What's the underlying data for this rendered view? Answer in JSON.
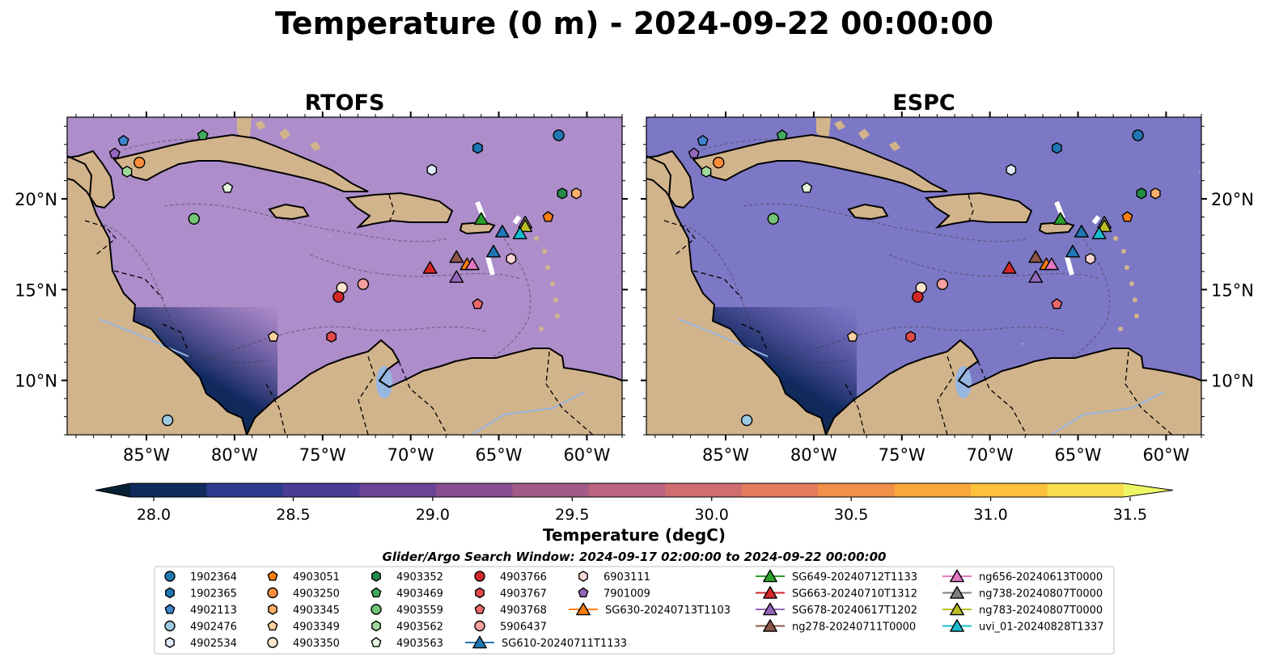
{
  "figure_title": "Temperature (0 m) - 2024-09-22 00:00:00",
  "colors": {
    "land": "#d2b48c",
    "lake": "#97b6e0",
    "scale": [
      "#062232",
      "#102a5e",
      "#2d3b8e",
      "#4b3b95",
      "#6a4496",
      "#874e8f",
      "#a25a88",
      "#ba6480",
      "#d06d70",
      "#e37c5c",
      "#f0904a",
      "#f9a63d",
      "#fdc13b",
      "#f7dc4d",
      "#eef665"
    ]
  },
  "chart_data": [
    {
      "type": "heatmap",
      "title": "RTOFS",
      "variable": "Temperature",
      "xlim": [
        -89.5,
        -58.0
      ],
      "ylim": [
        7.0,
        24.5
      ],
      "xticks": [
        "85°W",
        "80°W",
        "75°W",
        "70°W",
        "65°W",
        "60°W"
      ],
      "yticks": [
        "20°N",
        "15°N",
        "10°N"
      ],
      "relative_warmth": "warmer"
    },
    {
      "type": "heatmap",
      "title": "ESPC",
      "variable": "Temperature",
      "xlim": [
        -89.5,
        -58.0
      ],
      "ylim": [
        7.0,
        24.5
      ],
      "xticks": [
        "85°W",
        "80°W",
        "75°W",
        "70°W",
        "65°W",
        "60°W"
      ],
      "yticks": [
        "20°N",
        "15°N",
        "10°N"
      ],
      "relative_warmth": "cooler"
    }
  ],
  "colorbar": {
    "label": "Temperature (degC)",
    "range": [
      28.0,
      31.5
    ],
    "ticks": [
      "28.0",
      "28.5",
      "29.0",
      "29.5",
      "30.0",
      "30.5",
      "31.0",
      "31.5"
    ],
    "extend": "both"
  },
  "legend": {
    "title": "Glider/Argo Search Window: 2024-09-17 02:00:00 to 2024-09-22 00:00:00",
    "columns": [
      [
        {
          "label": "1902364",
          "marker": "circle",
          "color": "#1f77b4"
        },
        {
          "label": "1902365",
          "marker": "hexagon",
          "color": "#1f77b4"
        },
        {
          "label": "4902113",
          "marker": "pentagon",
          "color": "#3f86cf"
        },
        {
          "label": "4902476",
          "marker": "circle",
          "color": "#9ecae1"
        },
        {
          "label": "4902534",
          "marker": "hexagon",
          "color": "#deebf7"
        }
      ],
      [
        {
          "label": "4903051",
          "marker": "pentagon",
          "color": "#ff7f0e"
        },
        {
          "label": "4903250",
          "marker": "circle",
          "color": "#fd8d3c"
        },
        {
          "label": "4903345",
          "marker": "hexagon",
          "color": "#fdae6b"
        },
        {
          "label": "4903349",
          "marker": "pentagon",
          "color": "#fdd0a2"
        },
        {
          "label": "4903350",
          "marker": "circle",
          "color": "#fee6ce"
        }
      ],
      [
        {
          "label": "4903352",
          "marker": "hexagon",
          "color": "#238b45"
        },
        {
          "label": "4903469",
          "marker": "pentagon",
          "color": "#41ab5d"
        },
        {
          "label": "4903559",
          "marker": "circle",
          "color": "#74c476"
        },
        {
          "label": "4903562",
          "marker": "hexagon",
          "color": "#a1d99b"
        },
        {
          "label": "4903563",
          "marker": "pentagon",
          "color": "#e5f5e0"
        }
      ],
      [
        {
          "label": "4903766",
          "marker": "circle",
          "color": "#d62728"
        },
        {
          "label": "4903767",
          "marker": "hexagon",
          "color": "#e34a4a"
        },
        {
          "label": "4903768",
          "marker": "pentagon",
          "color": "#ee6a6a"
        },
        {
          "label": "5906437",
          "marker": "circle",
          "color": "#f7a0a0"
        },
        {
          "label": "SG610-20240711T1133",
          "marker": "triangle",
          "color": "#1f77b4",
          "line": true
        }
      ],
      [
        {
          "label": "6903111",
          "marker": "hexagon",
          "color": "#fcd5d5"
        },
        {
          "label": "7901009",
          "marker": "pentagon",
          "color": "#9467bd"
        },
        {
          "label": "SG630-20240713T1103",
          "marker": "triangle",
          "color": "#ff7f0e",
          "line": true
        }
      ],
      [
        {
          "label": "SG649-20240712T1133",
          "marker": "triangle",
          "color": "#2ca02c",
          "line": true
        },
        {
          "label": "SG663-20240710T1312",
          "marker": "triangle",
          "color": "#d62728",
          "line": true
        },
        {
          "label": "SG678-20240617T1202",
          "marker": "triangle",
          "color": "#9467bd",
          "line": true
        },
        {
          "label": "ng278-20240711T0000",
          "marker": "triangle",
          "color": "#8c564b",
          "line": true
        }
      ],
      [
        {
          "label": "ng656-20240613T0000",
          "marker": "triangle",
          "color": "#e377c2",
          "line": true
        },
        {
          "label": "ng738-20240807T0000",
          "marker": "triangle",
          "color": "#7f7f7f",
          "line": true
        },
        {
          "label": "ng783-20240807T0000",
          "marker": "triangle",
          "color": "#bcbd22",
          "line": true
        },
        {
          "label": "uvi_01-20240828T1337",
          "marker": "triangle",
          "color": "#17becf",
          "line": true
        }
      ]
    ]
  },
  "argo_floats": [
    {
      "id": "1902364",
      "lon": -61.6,
      "lat": 23.5
    },
    {
      "id": "1902365",
      "lon": -66.2,
      "lat": 22.8
    },
    {
      "id": "4902113",
      "lon": -86.3,
      "lat": 23.2
    },
    {
      "id": "4902476",
      "lon": -83.8,
      "lat": 7.8
    },
    {
      "id": "4902534",
      "lon": -68.8,
      "lat": 21.6
    },
    {
      "id": "4903051",
      "lon": -62.2,
      "lat": 19.0
    },
    {
      "id": "4903250",
      "lon": -85.4,
      "lat": 22.0
    },
    {
      "id": "4903345",
      "lon": -60.6,
      "lat": 20.3
    },
    {
      "id": "4903349",
      "lon": -77.8,
      "lat": 12.4
    },
    {
      "id": "4903350",
      "lon": -73.9,
      "lat": 15.1
    },
    {
      "id": "4903352",
      "lon": -61.4,
      "lat": 20.3
    },
    {
      "id": "4903469",
      "lon": -81.8,
      "lat": 23.5
    },
    {
      "id": "4903559",
      "lon": -82.3,
      "lat": 18.9
    },
    {
      "id": "4903562",
      "lon": -86.1,
      "lat": 21.5
    },
    {
      "id": "4903563",
      "lon": -80.4,
      "lat": 20.6
    },
    {
      "id": "4903766",
      "lon": -74.1,
      "lat": 14.6
    },
    {
      "id": "4903767",
      "lon": -74.5,
      "lat": 12.4
    },
    {
      "id": "4903768",
      "lon": -66.2,
      "lat": 14.2
    },
    {
      "id": "5906437",
      "lon": -72.7,
      "lat": 15.3
    },
    {
      "id": "6903111",
      "lon": -64.3,
      "lat": 16.7
    },
    {
      "id": "7901009",
      "lon": -86.8,
      "lat": 22.5
    }
  ],
  "gliders": [
    {
      "id": "SG610-20240711T1133",
      "lon": -64.8,
      "lat": 18.2
    },
    {
      "id": "SG610-20240711T1133",
      "lon": -65.3,
      "lat": 17.1
    },
    {
      "id": "SG630-20240713T1103",
      "lon": -66.8,
      "lat": 16.4
    },
    {
      "id": "SG649-20240712T1133",
      "lon": -66.0,
      "lat": 18.9
    },
    {
      "id": "SG663-20240710T1312",
      "lon": -68.9,
      "lat": 16.2
    },
    {
      "id": "SG678-20240617T1202",
      "lon": -67.4,
      "lat": 15.7
    },
    {
      "id": "ng278-20240711T0000",
      "lon": -67.4,
      "lat": 16.8
    },
    {
      "id": "ng656-20240613T0000",
      "lon": -66.5,
      "lat": 16.4
    },
    {
      "id": "ng738-20240807T0000",
      "lon": -63.5,
      "lat": 18.7
    },
    {
      "id": "ng783-20240807T0000",
      "lon": -63.5,
      "lat": 18.5
    },
    {
      "id": "uvi_01-20240828T1337",
      "lon": -63.8,
      "lat": 18.1
    }
  ]
}
